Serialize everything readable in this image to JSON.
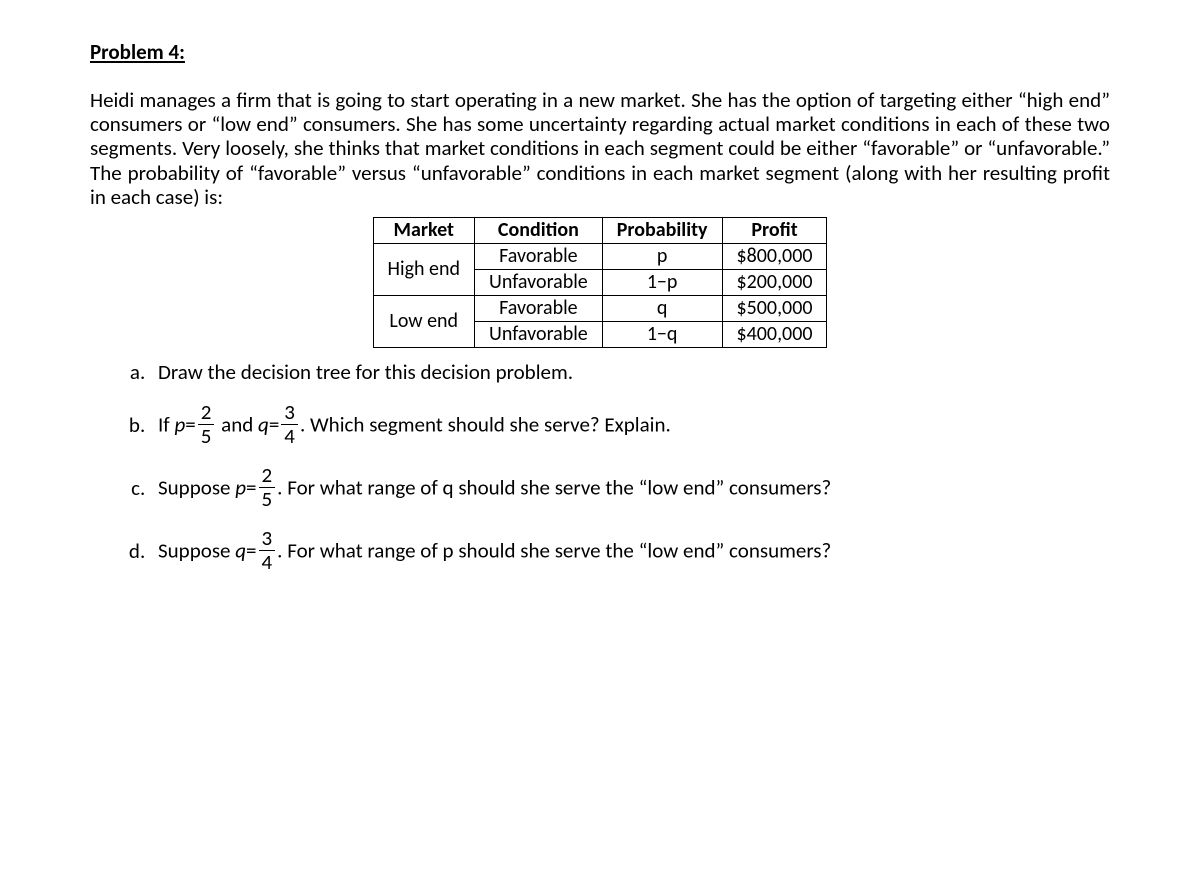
{
  "heading": "Problem 4:",
  "intro": "Heidi manages a firm that is going to start operating in a new market. She has the option of targeting either “high end” consumers or “low end” consumers. She has some uncertainty regarding actual market conditions in each of these two segments. Very loosely, she thinks that market conditions in each segment could be either “favorable” or “unfavorable.” The probability of “favorable” versus “unfavorable” conditions in each market segment (along with her resulting profit in each case) is:",
  "table": {
    "headers": [
      "Market",
      "Condition",
      "Probability",
      "Profit"
    ],
    "markets": [
      "High end",
      "Low end"
    ],
    "rows": [
      {
        "condition": "Favorable",
        "probability": "p",
        "profit": "$800,000"
      },
      {
        "condition": "Unfavorable",
        "probability": "1−p",
        "profit": "$200,000"
      },
      {
        "condition": "Favorable",
        "probability": "q",
        "profit": "$500,000"
      },
      {
        "condition": "Unfavorable",
        "probability": "1−q",
        "profit": "$400,000"
      }
    ]
  },
  "q": {
    "a": "Draw the decision tree for this decision problem.",
    "b": {
      "pre": "If ",
      "p_sym": "p",
      "eq1": "=",
      "p_num": "2",
      "p_den": "5",
      "and": " and ",
      "q_sym": "q",
      "eq2": "=",
      "q_num": "3",
      "q_den": "4",
      "post": ". Which segment should she serve? Explain."
    },
    "c": {
      "pre": "Suppose ",
      "p_sym": "p",
      "eq": "=",
      "num": "2",
      "den": "5",
      "post": ". For what range of q should she serve the “low end” consumers?"
    },
    "d": {
      "pre": "Suppose ",
      "q_sym": "q",
      "eq": "=",
      "num": "3",
      "den": "4",
      "post": ". For what range of p should she serve the “low end” consumers?"
    }
  }
}
